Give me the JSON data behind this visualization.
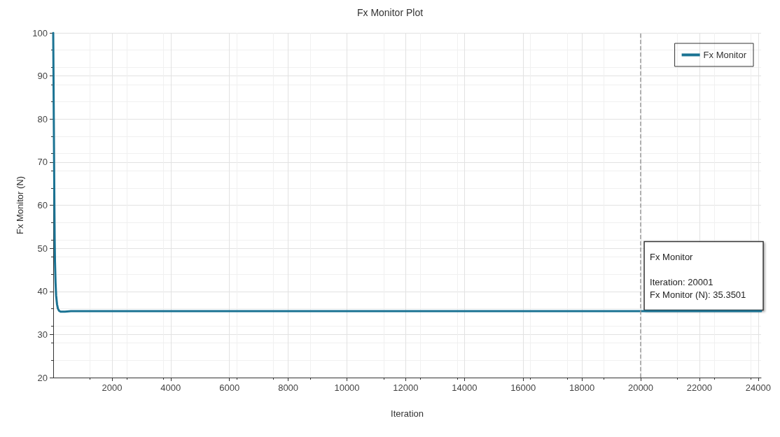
{
  "chart_data": {
    "type": "line",
    "title": "Fx Monitor Plot",
    "xlabel": "Iteration",
    "ylabel": "Fx Monitor (N)",
    "x": [
      0,
      10,
      20,
      30,
      40,
      50,
      60,
      80,
      100,
      130,
      160,
      200,
      250,
      300,
      400,
      600,
      1000,
      2000,
      4000,
      8000,
      12000,
      16000,
      20001,
      24100
    ],
    "series": [
      {
        "name": "Fx Monitor",
        "color": "#1b7393",
        "values": [
          100,
          90,
          80,
          70,
          60,
          52,
          47,
          42,
          39,
          37,
          36,
          35.5,
          35.3,
          35.3,
          35.3,
          35.4,
          35.4,
          35.4,
          35.4,
          35.4,
          35.4,
          35.4,
          35.4,
          35.4
        ]
      }
    ],
    "xlim": [
      0,
      24100
    ],
    "xticks": [
      2000,
      4000,
      6000,
      8000,
      10000,
      12000,
      14000,
      16000,
      18000,
      20000,
      22000,
      24000
    ],
    "ylim": [
      20,
      100
    ],
    "yticks": [
      20,
      30,
      40,
      50,
      60,
      70,
      80,
      90,
      100
    ],
    "grid": true,
    "legend": "top right",
    "marker": "none",
    "line_style": "solid",
    "ref_lines": [
      {
        "axis": "x",
        "value": 20001,
        "label": null,
        "color": "#9a9a9a",
        "line_style": "dashed"
      }
    ],
    "annotations": [
      "Fx Monitor",
      {
        "text": "Iteration: 20001",
        "x": 20001,
        "y": 35.3501
      },
      "Fx Monitor (N): 35.3501"
    ]
  }
}
